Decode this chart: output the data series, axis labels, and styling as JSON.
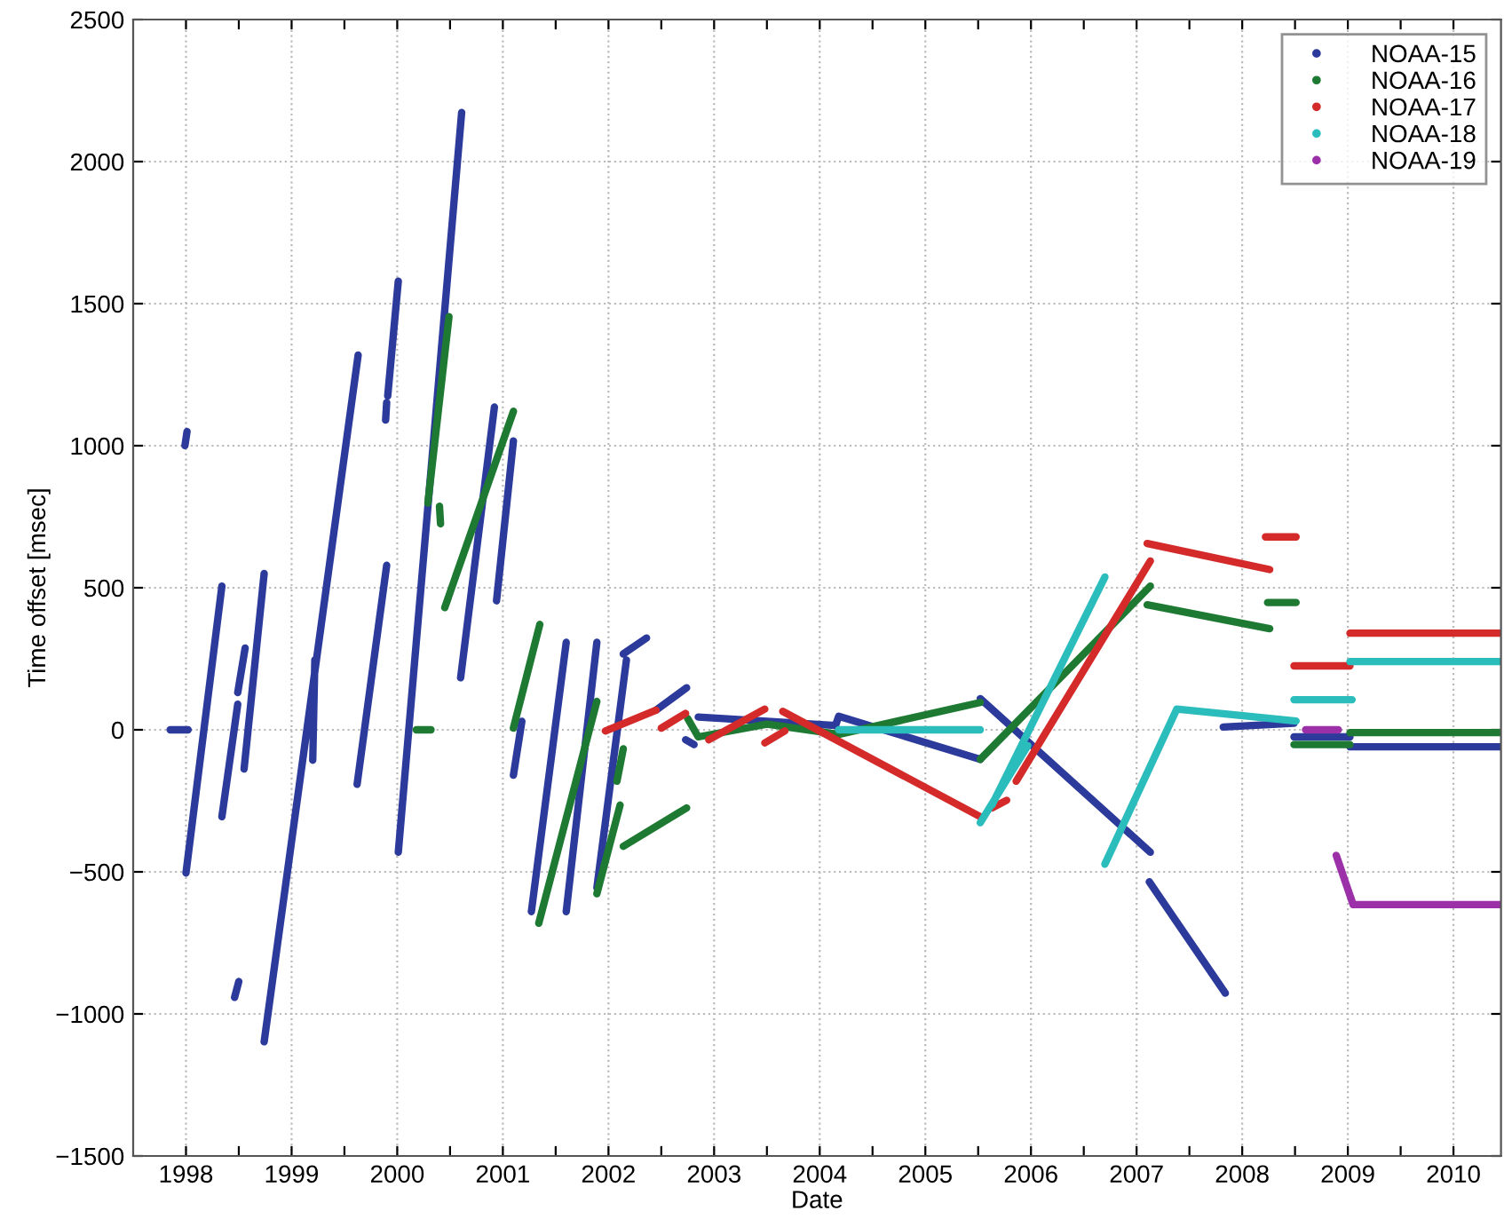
{
  "chart_data": {
    "type": "line",
    "xlabel": "Date",
    "ylabel": "Time offset [msec]",
    "xlim": [
      1997.5,
      2010.45
    ],
    "ylim": [
      -1500,
      2500
    ],
    "xticks": [
      1998,
      {
        "value": 1998.5,
        "label": null
      },
      1999,
      {
        "value": 1999.5,
        "label": null
      },
      2000,
      {
        "value": 2000.5,
        "label": null
      },
      2001,
      {
        "value": 2001.5,
        "label": null
      },
      2002,
      {
        "value": 2002.5,
        "label": null
      },
      2003,
      {
        "value": 2003.5,
        "label": null
      },
      2004,
      {
        "value": 2004.5,
        "label": null
      },
      2005,
      {
        "value": 2005.5,
        "label": null
      },
      2006,
      {
        "value": 2006.5,
        "label": null
      },
      2007,
      {
        "value": 2007.5,
        "label": null
      },
      2008,
      {
        "value": 2008.5,
        "label": null
      },
      2009,
      {
        "value": 2009.5,
        "label": null
      },
      2010
    ],
    "yticks": [
      -1500,
      -1000,
      -500,
      0,
      500,
      1000,
      1500,
      2000,
      2500
    ],
    "grid": true,
    "legend": "top right",
    "line_style": "solid",
    "series": [
      {
        "name": "NOAA-15",
        "color": "#2b3a9b",
        "x": [
          1997.85,
          1998.02,
          null,
          1997.99,
          1998.01,
          null,
          1998.0,
          1998.34,
          null,
          1998.34,
          1998.49,
          null,
          1998.49,
          1998.56,
          null,
          1998.46,
          1998.5,
          null,
          1998.55,
          1998.74,
          null,
          1998.74,
          1999.63,
          null,
          1999.2,
          1999.22,
          null,
          1999.62,
          1999.9,
          null,
          1999.89,
          1999.9,
          null,
          1999.91,
          2000.01,
          null,
          2000.01,
          2000.61,
          null,
          2000.6,
          2000.92,
          null,
          2000.94,
          2001.1,
          null,
          2001.1,
          2001.18,
          null,
          2001.27,
          2001.6,
          null,
          2001.6,
          2001.89,
          null,
          2001.89,
          2002.17,
          null,
          2002.14,
          2002.36,
          null,
          2002.45,
          2002.74,
          null,
          2002.73,
          2002.81,
          null,
          2002.85,
          2004.15,
          2004.18,
          2005.52,
          null,
          2005.52,
          2007.13,
          null,
          2007.12,
          2007.84,
          null,
          2007.82,
          2008.49,
          null,
          2008.49,
          2009.02,
          null,
          2009.02,
          2010.45
        ],
        "values": [
          0,
          0,
          null,
          1000,
          1050,
          null,
          -504,
          506,
          null,
          -306,
          90,
          null,
          131,
          288,
          null,
          -942,
          -886,
          null,
          -138,
          550,
          null,
          -1098,
          1319,
          null,
          -107,
          246,
          null,
          -192,
          579,
          null,
          1090,
          1152,
          null,
          1175,
          1579,
          null,
          -431,
          2173,
          null,
          183,
          1136,
          null,
          454,
          1017,
          null,
          -160,
          30,
          null,
          -640,
          308,
          null,
          -640,
          308,
          null,
          -556,
          246,
          null,
          267,
          323,
          null,
          69,
          148,
          null,
          -35,
          -52,
          null,
          45,
          15,
          48,
          -104,
          null,
          110,
          -431,
          null,
          -535,
          -927,
          null,
          10,
          23,
          null,
          -25,
          -25,
          null,
          -60,
          -60
        ]
      },
      {
        "name": "NOAA-16",
        "color": "#1e7a32",
        "x": [
          2000.18,
          2000.32,
          null,
          2000.29,
          2000.49,
          null,
          2000.4,
          2000.41,
          null,
          2000.45,
          2001.1,
          null,
          2001.1,
          2001.35,
          null,
          2001.34,
          2001.89,
          null,
          2001.89,
          2002.11,
          null,
          2002.08,
          2002.14,
          null,
          2002.14,
          2002.74,
          null,
          2002.75,
          2002.85,
          2003.5,
          2004.18,
          2005.52,
          null,
          2005.52,
          2007.13,
          null,
          2007.1,
          2008.26,
          null,
          2008.24,
          2008.51,
          null,
          2008.49,
          2009.02,
          null,
          2009.02,
          2010.45
        ],
        "values": [
          0,
          0,
          null,
          798,
          1454,
          null,
          787,
          725,
          null,
          430,
          1121,
          null,
          6,
          371,
          null,
          -681,
          100,
          null,
          -577,
          -265,
          null,
          -181,
          -67,
          null,
          -410,
          -275,
          null,
          40,
          -25,
          20,
          -16,
          96,
          null,
          -104,
          506,
          null,
          440,
          356,
          null,
          448,
          448,
          null,
          -52,
          -52,
          null,
          -10,
          -10
        ]
      },
      {
        "name": "NOAA-17",
        "color": "#d42a2a",
        "x": [
          2001.97,
          2002.45,
          null,
          2002.5,
          2002.73,
          null,
          2002.95,
          2003.48,
          null,
          2003.48,
          2003.67,
          null,
          2003.65,
          2005.52,
          null,
          2005.63,
          2005.77,
          null,
          2005.86,
          2007.13,
          null,
          2007.1,
          2008.26,
          null,
          2008.22,
          2008.51,
          null,
          2008.49,
          2009.02,
          null,
          2009.02,
          2010.45
        ],
        "values": [
          -4,
          69,
          null,
          6,
          58,
          null,
          -35,
          73,
          null,
          -46,
          -4,
          null,
          65,
          -306,
          null,
          -275,
          -248,
          null,
          -181,
          594,
          null,
          656,
          564,
          null,
          679,
          679,
          null,
          225,
          225,
          null,
          340,
          340
        ]
      },
      {
        "name": "NOAA-18",
        "color": "#2bbcbc",
        "x": [
          2004.18,
          2005.52,
          null,
          2005.52,
          2005.97,
          null,
          2005.63,
          2006.7,
          null,
          2006.7,
          2007.38,
          2008.51,
          null,
          2008.49,
          2009.04,
          null,
          2009.02,
          2010.45
        ],
        "values": [
          0,
          0,
          null,
          -327,
          -56,
          null,
          -265,
          538,
          null,
          -473,
          73,
          31,
          null,
          106,
          106,
          null,
          240,
          240
        ]
      },
      {
        "name": "NOAA-19",
        "color": "#9b30a8",
        "x": [
          2008.6,
          2008.91,
          null,
          2008.89,
          2009.05,
          2010.45
        ],
        "values": [
          0,
          0,
          null,
          -442,
          -615,
          -615
        ]
      }
    ]
  }
}
